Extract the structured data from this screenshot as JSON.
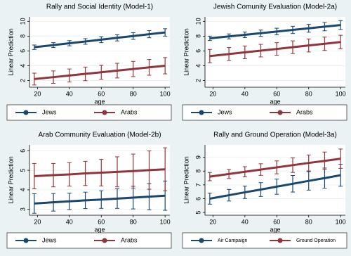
{
  "chart_data": [
    {
      "type": "line",
      "title": "Rally and Social Identity (Model-1)",
      "x_label": "age",
      "y_label": "Linear Prediction",
      "x": [
        18,
        30,
        40,
        50,
        60,
        70,
        80,
        90,
        100
      ],
      "xlim": [
        15,
        103
      ],
      "xticks": [
        20,
        40,
        60,
        80,
        100
      ],
      "ylim": [
        1.1,
        10.6
      ],
      "yticks": [
        2,
        4,
        6,
        8,
        10
      ],
      "grid": true,
      "series": [
        {
          "name": "Jews",
          "color": "#1a476f",
          "values": [
            6.5,
            6.79,
            7.04,
            7.28,
            7.52,
            7.77,
            8.01,
            8.26,
            8.5
          ],
          "errors": [
            0.3,
            0.33,
            0.35,
            0.38,
            0.4,
            0.42,
            0.45,
            0.48,
            0.5
          ]
        },
        {
          "name": "Arabs",
          "color": "#90353b",
          "values": [
            2.2,
            2.46,
            2.68,
            2.9,
            3.12,
            3.34,
            3.56,
            3.78,
            4.0
          ],
          "errors": [
            0.8,
            0.84,
            0.88,
            0.92,
            0.95,
            0.99,
            1.03,
            1.06,
            1.1
          ]
        }
      ]
    },
    {
      "type": "line",
      "title": "Jewish Comunity Evaluation (Model-2a)",
      "x_label": "age",
      "y_label": "Linear Prediction",
      "x": [
        18,
        30,
        40,
        50,
        60,
        70,
        80,
        90,
        100
      ],
      "xlim": [
        15,
        103
      ],
      "xticks": [
        20,
        40,
        60,
        80,
        100
      ],
      "ylim": [
        1.1,
        10.6
      ],
      "yticks": [
        2,
        4,
        6,
        8,
        10
      ],
      "grid": true,
      "series": [
        {
          "name": "Jews",
          "color": "#1a476f",
          "values": [
            7.7,
            7.96,
            8.18,
            8.4,
            8.62,
            8.84,
            9.06,
            9.28,
            9.5
          ],
          "errors": [
            0.3,
            0.34,
            0.38,
            0.42,
            0.45,
            0.49,
            0.53,
            0.56,
            0.6
          ]
        },
        {
          "name": "Arabs",
          "color": "#90353b",
          "values": [
            5.3,
            5.58,
            5.81,
            6.04,
            6.27,
            6.5,
            6.74,
            6.97,
            7.2
          ],
          "errors": [
            0.9,
            0.88,
            0.86,
            0.85,
            0.85,
            0.86,
            0.88,
            0.9,
            0.92
          ]
        }
      ]
    },
    {
      "type": "line",
      "title": "Arab Community Evaluation  (Model-2b)",
      "x_label": "age",
      "y_label": "Linear Prediction",
      "x": [
        18,
        30,
        40,
        50,
        60,
        70,
        80,
        90,
        100
      ],
      "xlim": [
        15,
        103
      ],
      "xticks": [
        20,
        40,
        60,
        80,
        100
      ],
      "ylim": [
        2.7,
        6.3
      ],
      "yticks": [
        3,
        4,
        5,
        6
      ],
      "grid": true,
      "series": [
        {
          "name": "Jews",
          "color": "#1a476f",
          "values": [
            3.3,
            3.36,
            3.41,
            3.46,
            3.5,
            3.55,
            3.6,
            3.65,
            3.7
          ],
          "errors": [
            0.5,
            0.45,
            0.42,
            0.42,
            0.45,
            0.5,
            0.58,
            0.67,
            0.75
          ]
        },
        {
          "name": "Arabs",
          "color": "#90353b",
          "values": [
            4.7,
            4.75,
            4.79,
            4.84,
            4.88,
            4.92,
            4.96,
            5.01,
            5.05
          ],
          "errors": [
            0.65,
            0.6,
            0.6,
            0.62,
            0.68,
            0.77,
            0.87,
            0.98,
            1.1
          ]
        }
      ]
    },
    {
      "type": "line",
      "title": "Rally and Ground Operation (Model-3a)",
      "x_label": "age",
      "y_label": "Linear Prediction",
      "x": [
        18,
        30,
        40,
        50,
        60,
        70,
        80,
        90,
        100
      ],
      "xlim": [
        15,
        103
      ],
      "xticks": [
        20,
        40,
        60,
        80,
        100
      ],
      "ylim": [
        4.8,
        9.9
      ],
      "yticks": [
        5,
        6,
        7,
        8,
        9
      ],
      "grid": true,
      "series": [
        {
          "name": "Air Campaign",
          "color": "#1a476f",
          "values": [
            6.0,
            6.25,
            6.46,
            6.66,
            6.87,
            7.08,
            7.29,
            7.49,
            7.7
          ],
          "errors": [
            0.4,
            0.42,
            0.45,
            0.5,
            0.55,
            0.6,
            0.67,
            0.73,
            0.8
          ]
        },
        {
          "name": "Ground Operation",
          "color": "#90353b",
          "values": [
            7.6,
            7.79,
            7.95,
            8.11,
            8.27,
            8.43,
            8.59,
            8.74,
            8.9
          ],
          "errors": [
            0.3,
            0.33,
            0.37,
            0.42,
            0.47,
            0.53,
            0.58,
            0.64,
            0.7
          ]
        }
      ]
    }
  ]
}
